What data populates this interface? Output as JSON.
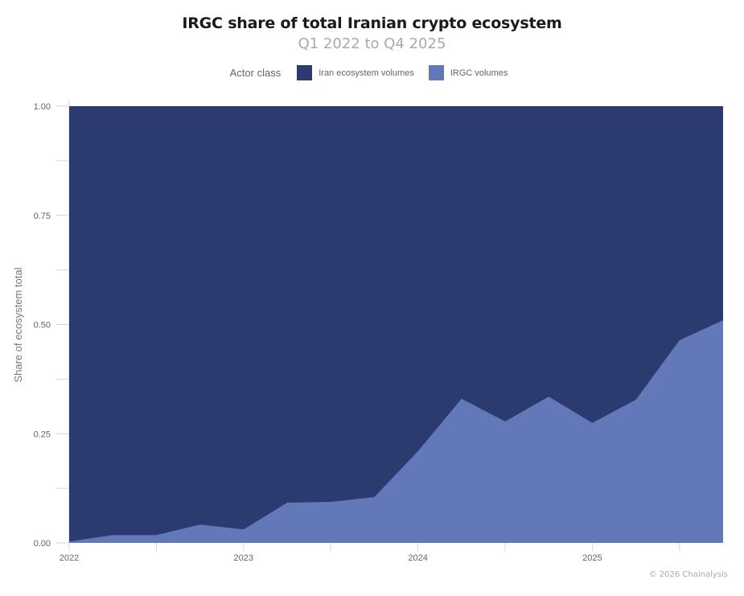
{
  "header": {
    "title": "IRGC share of total Iranian crypto ecosystem",
    "subtitle": "Q1 2022 to Q4 2025"
  },
  "legend": {
    "title": "Actor class",
    "items": [
      {
        "label": "Iran ecosystem volumes",
        "color": "#2b3a6f"
      },
      {
        "label": "IRGC volumes",
        "color": "#6278b8"
      }
    ]
  },
  "axes": {
    "y_title": "Share of ecosystem total",
    "y_ticks": [
      "0.00",
      "0.25",
      "0.50",
      "0.75",
      "1.00"
    ],
    "x_ticks": [
      "2022",
      "2023",
      "2024",
      "2025"
    ]
  },
  "credit": "© 2026 Chainalysis",
  "chart_data": {
    "type": "area",
    "title": "IRGC share of total Iranian crypto ecosystem",
    "subtitle": "Q1 2022 to Q4 2025",
    "xlabel": "",
    "ylabel": "Share of ecosystem total",
    "ylim": [
      0,
      1
    ],
    "stacked": true,
    "normalized": true,
    "legend_title": "Actor class",
    "legend_position": "top",
    "grid": false,
    "x": [
      "Q1 2022",
      "Q2 2022",
      "Q3 2022",
      "Q4 2022",
      "Q1 2023",
      "Q2 2023",
      "Q3 2023",
      "Q4 2023",
      "Q1 2024",
      "Q2 2024",
      "Q3 2024",
      "Q4 2024",
      "Q1 2025",
      "Q2 2025",
      "Q3 2025",
      "Q4 2025"
    ],
    "series": [
      {
        "name": "IRGC volumes",
        "color": "#6278b8",
        "values": [
          0.003,
          0.018,
          0.018,
          0.042,
          0.031,
          0.092,
          0.094,
          0.105,
          0.21,
          0.33,
          0.278,
          0.335,
          0.275,
          0.328,
          0.464,
          0.51
        ]
      },
      {
        "name": "Iran ecosystem volumes",
        "color": "#2b3a6f",
        "values": [
          0.997,
          0.982,
          0.982,
          0.958,
          0.969,
          0.908,
          0.906,
          0.895,
          0.79,
          0.67,
          0.722,
          0.665,
          0.725,
          0.672,
          0.536,
          0.49
        ]
      }
    ],
    "x_tick_labels": [
      "2022",
      "2023",
      "2024",
      "2025"
    ],
    "y_tick_labels": [
      "0.00",
      "0.25",
      "0.50",
      "0.75",
      "1.00"
    ]
  }
}
